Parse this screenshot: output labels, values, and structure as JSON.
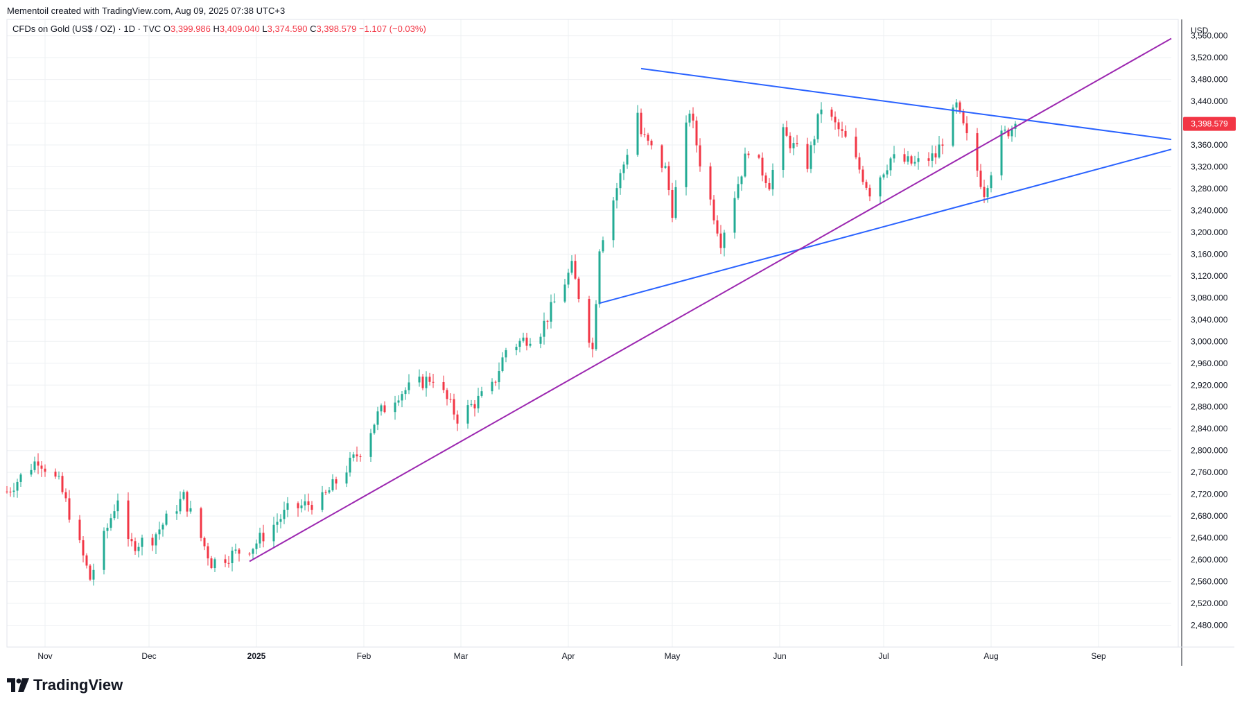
{
  "header": {
    "attribution": "Mementoil created with TradingView.com, Aug 09, 2025 07:38 UTC+3"
  },
  "legend": {
    "symbol": "CFDs on Gold (US$ / OZ) · 1D · TVC",
    "o_label": "O",
    "o_value": "3,399.986",
    "h_label": "H",
    "h_value": "3,409.040",
    "l_label": "L",
    "l_value": "3,374.590",
    "c_label": "C",
    "c_value": "3,398.579",
    "change": "−1.107 (−0.03%)"
  },
  "brand": {
    "name": "TradingView"
  },
  "colors": {
    "up": "#22ab94",
    "down": "#f23645",
    "trend_blue": "#2962ff",
    "trend_purple": "#9c27b0",
    "grid": "#eef0f3"
  },
  "chart_data": {
    "type": "candlestick",
    "title": "CFDs on Gold (US$ / OZ) · 1D · TVC",
    "currency": "USD",
    "last_price_label": "3,398.579",
    "ylim": [
      2440,
      3590
    ],
    "x_range": [
      "2024-10-21",
      "2025-09-22"
    ],
    "y_ticks": [
      {
        "v": 2480,
        "label": "2,480.000"
      },
      {
        "v": 2520,
        "label": "2,520.000"
      },
      {
        "v": 2560,
        "label": "2,560.000"
      },
      {
        "v": 2600,
        "label": "2,600.000"
      },
      {
        "v": 2640,
        "label": "2,640.000"
      },
      {
        "v": 2680,
        "label": "2,680.000"
      },
      {
        "v": 2720,
        "label": "2,720.000"
      },
      {
        "v": 2760,
        "label": "2,760.000"
      },
      {
        "v": 2800,
        "label": "2,800.000"
      },
      {
        "v": 2840,
        "label": "2,840.000"
      },
      {
        "v": 2880,
        "label": "2,880.000"
      },
      {
        "v": 2920,
        "label": "2,920.000"
      },
      {
        "v": 2960,
        "label": "2,960.000"
      },
      {
        "v": 3000,
        "label": "3,000.000"
      },
      {
        "v": 3040,
        "label": "3,040.000"
      },
      {
        "v": 3080,
        "label": "3,080.000"
      },
      {
        "v": 3120,
        "label": "3,120.000"
      },
      {
        "v": 3160,
        "label": "3,160.000"
      },
      {
        "v": 3200,
        "label": "3,200.000"
      },
      {
        "v": 3240,
        "label": "3,240.000"
      },
      {
        "v": 3280,
        "label": "3,280.000"
      },
      {
        "v": 3320,
        "label": "3,320.000"
      },
      {
        "v": 3360,
        "label": "3,360.000"
      },
      {
        "v": 3400,
        "label": "3,400.000"
      },
      {
        "v": 3440,
        "label": "3,440.000"
      },
      {
        "v": 3480,
        "label": "3,480.000"
      },
      {
        "v": 3520,
        "label": "3,520.000"
      },
      {
        "v": 3560,
        "label": "3,560.000"
      }
    ],
    "x_ticks": [
      {
        "date": "2024-11-01",
        "label": "Nov",
        "bold": false
      },
      {
        "date": "2024-12-01",
        "label": "Dec",
        "bold": false
      },
      {
        "date": "2025-01-01",
        "label": "2025",
        "bold": true
      },
      {
        "date": "2025-02-01",
        "label": "Feb",
        "bold": false
      },
      {
        "date": "2025-03-01",
        "label": "Mar",
        "bold": false
      },
      {
        "date": "2025-04-01",
        "label": "Apr",
        "bold": false
      },
      {
        "date": "2025-05-01",
        "label": "May",
        "bold": false
      },
      {
        "date": "2025-06-01",
        "label": "Jun",
        "bold": false
      },
      {
        "date": "2025-07-01",
        "label": "Jul",
        "bold": false
      },
      {
        "date": "2025-08-01",
        "label": "Aug",
        "bold": false
      },
      {
        "date": "2025-09-01",
        "label": "Sep",
        "bold": false
      }
    ],
    "anchors": [
      [
        "2024-10-21",
        2725
      ],
      [
        "2024-10-30",
        2785
      ],
      [
        "2024-11-05",
        2740
      ],
      [
        "2024-11-07",
        2705
      ],
      [
        "2024-11-14",
        2565
      ],
      [
        "2024-11-25",
        2625
      ],
      [
        "2024-11-22",
        2715
      ],
      [
        "2024-12-02",
        2640
      ],
      [
        "2024-12-11",
        2715
      ],
      [
        "2024-12-19",
        2595
      ],
      [
        "2024-12-31",
        2625
      ],
      [
        "2025-01-10",
        2690
      ],
      [
        "2025-01-20",
        2710
      ],
      [
        "2025-01-31",
        2800
      ],
      [
        "2025-02-05",
        2865
      ],
      [
        "2025-02-11",
        2905
      ],
      [
        "2025-02-21",
        2935
      ],
      [
        "2025-02-28",
        2860
      ],
      [
        "2025-03-10",
        2915
      ],
      [
        "2025-03-14",
        2985
      ],
      [
        "2025-03-24",
        3020
      ],
      [
        "2025-04-02",
        3135
      ],
      [
        "2025-04-08",
        2985
      ],
      [
        "2025-04-10",
        3175
      ],
      [
        "2025-04-17",
        3325
      ],
      [
        "2025-04-21",
        3420
      ],
      [
        "2025-04-22",
        3380
      ],
      [
        "2025-04-29",
        3315
      ],
      [
        "2025-05-01",
        3240
      ],
      [
        "2025-05-06",
        3425
      ],
      [
        "2025-05-09",
        3330
      ],
      [
        "2025-05-15",
        3185
      ],
      [
        "2025-05-23",
        3355
      ],
      [
        "2025-05-29",
        3290
      ],
      [
        "2025-06-02",
        3380
      ],
      [
        "2025-06-09",
        3325
      ],
      [
        "2025-06-13",
        3430
      ],
      [
        "2025-06-20",
        3370
      ],
      [
        "2025-06-27",
        3275
      ],
      [
        "2025-07-03",
        3335
      ],
      [
        "2025-07-10",
        3325
      ],
      [
        "2025-07-16",
        3340
      ],
      [
        "2025-07-22",
        3430
      ],
      [
        "2025-07-30",
        3275
      ],
      [
        "2025-08-04",
        3375
      ],
      [
        "2025-08-08",
        3398
      ]
    ],
    "series": [
      {
        "name": "CFDs on Gold (US$ / OZ)",
        "last_close": 3398.579
      }
    ],
    "trendlines": [
      {
        "name": "upper-resistance-line",
        "color": "blue",
        "from": [
          "2025-04-22",
          3500
        ],
        "to": [
          "2025-09-22",
          3370
        ]
      },
      {
        "name": "lower-support-line",
        "color": "blue",
        "from": [
          "2025-04-10",
          3070
        ],
        "to": [
          "2025-09-22",
          3352
        ]
      },
      {
        "name": "rising-trendline",
        "color": "purple",
        "from": [
          "2024-12-30",
          2597
        ],
        "to": [
          "2025-09-22",
          3555
        ]
      }
    ]
  }
}
